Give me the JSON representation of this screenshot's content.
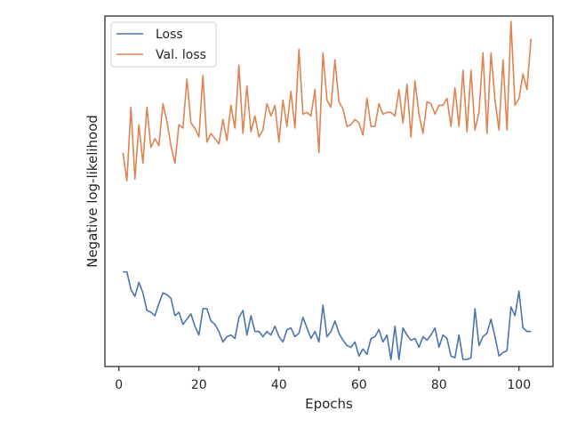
{
  "chart_data": {
    "type": "line",
    "title": "",
    "xlabel": "Epochs",
    "ylabel": "Negative log-likelihood",
    "xlim": [
      -3.5,
      108.5
    ],
    "xticks": [
      0,
      20,
      40,
      60,
      80,
      100
    ],
    "yticks": [],
    "ylim": [
      0,
      1
    ],
    "grid": false,
    "legend_position": "top-left",
    "x": [
      1,
      2,
      3,
      4,
      5,
      6,
      7,
      8,
      9,
      10,
      11,
      12,
      13,
      14,
      15,
      16,
      17,
      18,
      19,
      20,
      21,
      22,
      23,
      24,
      25,
      26,
      27,
      28,
      29,
      30,
      31,
      32,
      33,
      34,
      35,
      36,
      37,
      38,
      39,
      40,
      41,
      42,
      43,
      44,
      45,
      46,
      47,
      48,
      49,
      50,
      51,
      52,
      53,
      54,
      55,
      56,
      57,
      58,
      59,
      60,
      61,
      62,
      63,
      64,
      65,
      66,
      67,
      68,
      69,
      70,
      71,
      72,
      73,
      74,
      75,
      76,
      77,
      78,
      79,
      80,
      81,
      82,
      83,
      84,
      85,
      86,
      87,
      88,
      89,
      90,
      91,
      92,
      93,
      94,
      95,
      96,
      97,
      98,
      99,
      100,
      101,
      102,
      103
    ],
    "series": [
      {
        "name": "Loss",
        "color": "#4c72b0",
        "values": [
          0.27,
          0.27,
          0.22,
          0.2,
          0.24,
          0.21,
          0.16,
          0.155,
          0.145,
          0.18,
          0.21,
          0.205,
          0.195,
          0.145,
          0.155,
          0.12,
          0.135,
          0.15,
          0.115,
          0.09,
          0.165,
          0.165,
          0.13,
          0.12,
          0.1,
          0.07,
          0.085,
          0.09,
          0.08,
          0.14,
          0.16,
          0.09,
          0.145,
          0.1,
          0.1,
          0.085,
          0.1,
          0.09,
          0.115,
          0.085,
          0.07,
          0.105,
          0.11,
          0.085,
          0.095,
          0.14,
          0.11,
          0.08,
          0.1,
          0.07,
          0.175,
          0.085,
          0.1,
          0.13,
          0.095,
          0.075,
          0.06,
          0.055,
          0.07,
          0.03,
          0.05,
          0.035,
          0.08,
          0.085,
          0.105,
          0.07,
          0.09,
          0.02,
          0.115,
          0.02,
          0.11,
          0.09,
          0.075,
          0.08,
          0.055,
          0.085,
          0.075,
          0.09,
          0.11,
          0.055,
          0.09,
          0.08,
          0.03,
          0.025,
          0.09,
          0.02,
          0.02,
          0.025,
          0.165,
          0.06,
          0.085,
          0.095,
          0.135,
          0.085,
          0.03,
          0.04,
          0.045,
          0.17,
          0.145,
          0.215,
          0.11,
          0.1,
          0.1
        ]
      },
      {
        "name": "Val. loss",
        "color": "#dd8452",
        "values": [
          0.61,
          0.53,
          0.74,
          0.535,
          0.69,
          0.58,
          0.74,
          0.625,
          0.65,
          0.63,
          0.75,
          0.7,
          0.63,
          0.58,
          0.69,
          0.68,
          0.82,
          0.695,
          0.68,
          0.655,
          0.83,
          0.64,
          0.665,
          0.65,
          0.635,
          0.705,
          0.645,
          0.745,
          0.68,
          0.86,
          0.665,
          0.8,
          0.67,
          0.715,
          0.655,
          0.675,
          0.75,
          0.715,
          0.745,
          0.64,
          0.76,
          0.685,
          0.785,
          0.68,
          0.905,
          0.72,
          0.725,
          0.715,
          0.79,
          0.61,
          0.895,
          0.76,
          0.74,
          0.875,
          0.755,
          0.735,
          0.685,
          0.69,
          0.705,
          0.695,
          0.66,
          0.765,
          0.685,
          0.685,
          0.75,
          0.72,
          0.725,
          0.725,
          0.715,
          0.79,
          0.695,
          0.805,
          0.655,
          0.815,
          0.72,
          0.665,
          0.755,
          0.75,
          0.72,
          0.745,
          0.745,
          0.765,
          0.685,
          0.795,
          0.685,
          0.845,
          0.67,
          0.845,
          0.675,
          0.725,
          0.895,
          0.665,
          0.895,
          0.76,
          0.675,
          0.875,
          0.675,
          0.985,
          0.745,
          0.765,
          0.835,
          0.79,
          0.935
        ]
      }
    ]
  }
}
